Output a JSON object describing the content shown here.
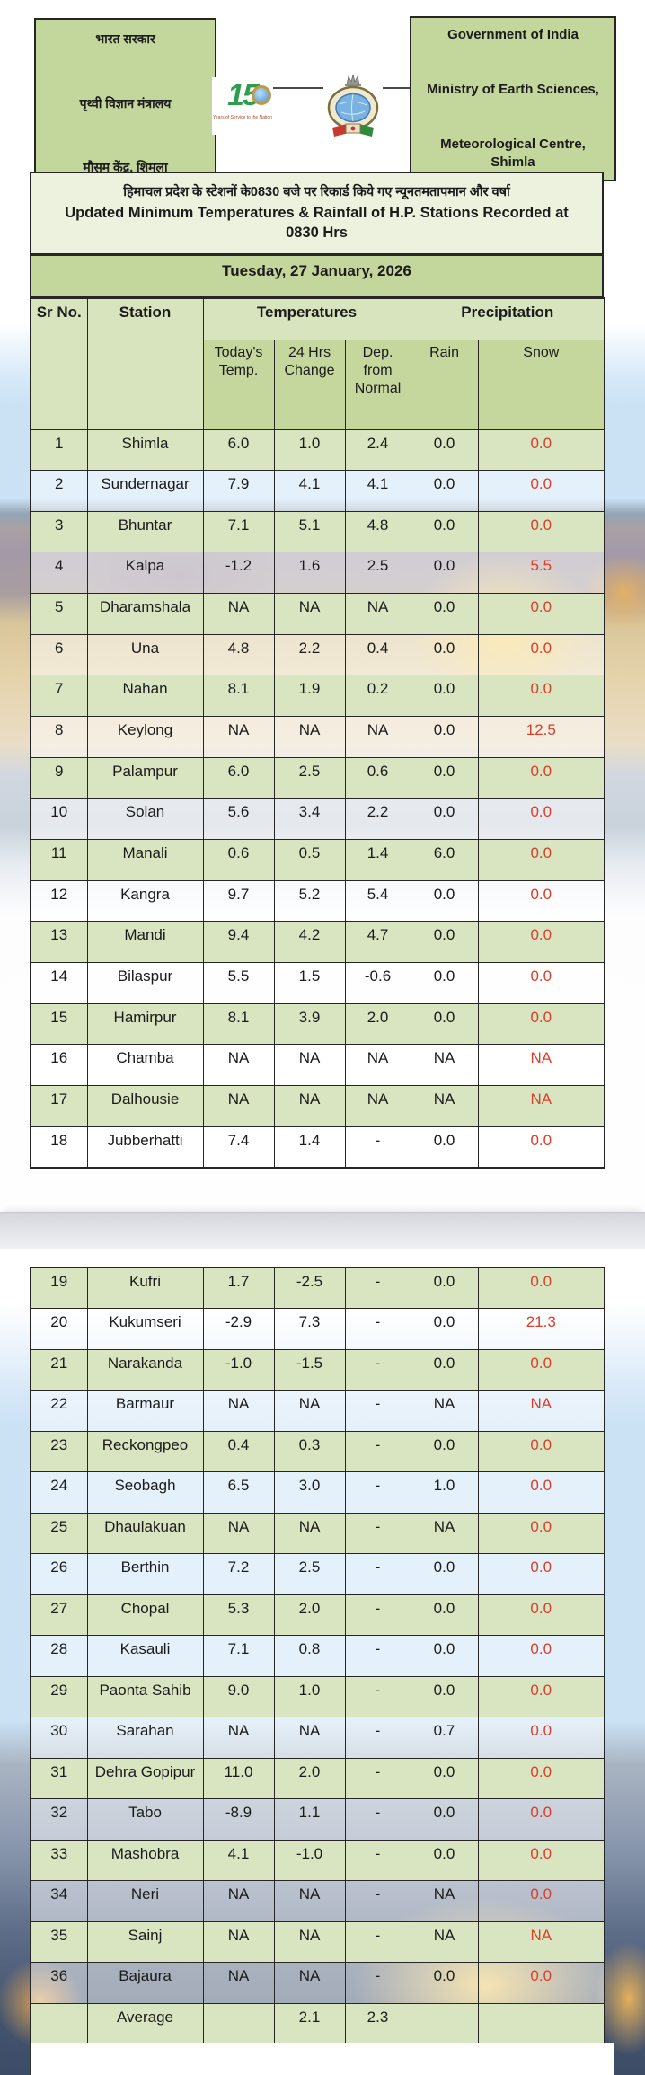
{
  "header": {
    "left_box": {
      "lines": [
        "भारत सरकार",
        "पृथ्वी विज्ञान मंत्रालय",
        "मौसम केंद्र, शिमला"
      ]
    },
    "right_box": {
      "lines": [
        "Government of India",
        "Ministry of Earth Sciences,",
        "Meteorological Centre, Shimla"
      ]
    },
    "logo_150": {
      "text": "15",
      "caption": "Years of Service to the Nation"
    }
  },
  "title": {
    "hindi": "हिमाचल प्रदेश के स्टेशनों के0830 बजे पर रिकार्ड किये गए न्यूनतमतापमान और वर्षा",
    "english": "Updated Minimum Temperatures & Rainfall of H.P. Stations Recorded at 0830 Hrs"
  },
  "date_line": "Tuesday, 27 January, 2026",
  "table": {
    "groups": {
      "temperatures": "Temperatures",
      "precipitation": "Precipitation"
    },
    "columns": [
      "Sr No.",
      "Station",
      "Today's Temp.",
      "24 Hrs Change",
      "Dep. from Normal",
      "Rain",
      "Snow"
    ],
    "rows": [
      {
        "sr": "1",
        "station": "Shimla",
        "today": "6.0",
        "change": "1.0",
        "dep": "2.4",
        "rain": "0.0",
        "snow": "0.0"
      },
      {
        "sr": "2",
        "station": "Sundernagar",
        "today": "7.9",
        "change": "4.1",
        "dep": "4.1",
        "rain": "0.0",
        "snow": "0.0"
      },
      {
        "sr": "3",
        "station": "Bhuntar",
        "today": "7.1",
        "change": "5.1",
        "dep": "4.8",
        "rain": "0.0",
        "snow": "0.0"
      },
      {
        "sr": "4",
        "station": "Kalpa",
        "today": "-1.2",
        "change": "1.6",
        "dep": "2.5",
        "rain": "0.0",
        "snow": "5.5"
      },
      {
        "sr": "5",
        "station": "Dharamshala",
        "today": "NA",
        "change": "NA",
        "dep": "NA",
        "rain": "0.0",
        "snow": "0.0"
      },
      {
        "sr": "6",
        "station": "Una",
        "today": "4.8",
        "change": "2.2",
        "dep": "0.4",
        "rain": "0.0",
        "snow": "0.0"
      },
      {
        "sr": "7",
        "station": "Nahan",
        "today": "8.1",
        "change": "1.9",
        "dep": "0.2",
        "rain": "0.0",
        "snow": "0.0"
      },
      {
        "sr": "8",
        "station": "Keylong",
        "today": "NA",
        "change": "NA",
        "dep": "NA",
        "rain": "0.0",
        "snow": "12.5"
      },
      {
        "sr": "9",
        "station": "Palampur",
        "today": "6.0",
        "change": "2.5",
        "dep": "0.6",
        "rain": "0.0",
        "snow": "0.0"
      },
      {
        "sr": "10",
        "station": "Solan",
        "today": "5.6",
        "change": "3.4",
        "dep": "2.2",
        "rain": "0.0",
        "snow": "0.0"
      },
      {
        "sr": "11",
        "station": "Manali",
        "today": "0.6",
        "change": "0.5",
        "dep": "1.4",
        "rain": "6.0",
        "snow": "0.0"
      },
      {
        "sr": "12",
        "station": "Kangra",
        "today": "9.7",
        "change": "5.2",
        "dep": "5.4",
        "rain": "0.0",
        "snow": "0.0"
      },
      {
        "sr": "13",
        "station": "Mandi",
        "today": "9.4",
        "change": "4.2",
        "dep": "4.7",
        "rain": "0.0",
        "snow": "0.0"
      },
      {
        "sr": "14",
        "station": "Bilaspur",
        "today": "5.5",
        "change": "1.5",
        "dep": "-0.6",
        "rain": "0.0",
        "snow": "0.0"
      },
      {
        "sr": "15",
        "station": "Hamirpur",
        "today": "8.1",
        "change": "3.9",
        "dep": "2.0",
        "rain": "0.0",
        "snow": "0.0"
      },
      {
        "sr": "16",
        "station": "Chamba",
        "today": "NA",
        "change": "NA",
        "dep": "NA",
        "rain": "NA",
        "snow": "NA"
      },
      {
        "sr": "17",
        "station": "Dalhousie",
        "today": "NA",
        "change": "NA",
        "dep": "NA",
        "rain": "NA",
        "snow": "NA"
      },
      {
        "sr": "18",
        "station": "Jubberhatti",
        "today": "7.4",
        "change": "1.4",
        "dep": "-",
        "rain": "0.0",
        "snow": "0.0"
      },
      {
        "sr": "19",
        "station": "Kufri",
        "today": "1.7",
        "change": "-2.5",
        "dep": "-",
        "rain": "0.0",
        "snow": "0.0"
      },
      {
        "sr": "20",
        "station": "Kukumseri",
        "today": "-2.9",
        "change": "7.3",
        "dep": "-",
        "rain": "0.0",
        "snow": "21.3"
      },
      {
        "sr": "21",
        "station": "Narakanda",
        "today": "-1.0",
        "change": "-1.5",
        "dep": "-",
        "rain": "0.0",
        "snow": "0.0"
      },
      {
        "sr": "22",
        "station": "Barmaur",
        "today": "NA",
        "change": "NA",
        "dep": "-",
        "rain": "NA",
        "snow": "NA"
      },
      {
        "sr": "23",
        "station": "Reckongpeo",
        "today": "0.4",
        "change": "0.3",
        "dep": "-",
        "rain": "0.0",
        "snow": "0.0"
      },
      {
        "sr": "24",
        "station": "Seobagh",
        "today": "6.5",
        "change": "3.0",
        "dep": "-",
        "rain": "1.0",
        "snow": "0.0"
      },
      {
        "sr": "25",
        "station": "Dhaulakuan",
        "today": "NA",
        "change": "NA",
        "dep": "-",
        "rain": "NA",
        "snow": "0.0"
      },
      {
        "sr": "26",
        "station": "Berthin",
        "today": "7.2",
        "change": "2.5",
        "dep": "-",
        "rain": "0.0",
        "snow": "0.0"
      },
      {
        "sr": "27",
        "station": "Chopal",
        "today": "5.3",
        "change": "2.0",
        "dep": "-",
        "rain": "0.0",
        "snow": "0.0"
      },
      {
        "sr": "28",
        "station": "Kasauli",
        "today": "7.1",
        "change": "0.8",
        "dep": "-",
        "rain": "0.0",
        "snow": "0.0"
      },
      {
        "sr": "29",
        "station": "Paonta Sahib",
        "today": "9.0",
        "change": "1.0",
        "dep": "-",
        "rain": "0.0",
        "snow": "0.0"
      },
      {
        "sr": "30",
        "station": "Sarahan",
        "today": "NA",
        "change": "NA",
        "dep": "-",
        "rain": "0.7",
        "snow": "0.0"
      },
      {
        "sr": "31",
        "station": "Dehra Gopipur",
        "today": "11.0",
        "change": "2.0",
        "dep": "-",
        "rain": "0.0",
        "snow": "0.0"
      },
      {
        "sr": "32",
        "station": "Tabo",
        "today": "-8.9",
        "change": "1.1",
        "dep": "-",
        "rain": "0.0",
        "snow": "0.0"
      },
      {
        "sr": "33",
        "station": "Mashobra",
        "today": "4.1",
        "change": "-1.0",
        "dep": "-",
        "rain": "0.0",
        "snow": "0.0"
      },
      {
        "sr": "34",
        "station": "Neri",
        "today": "NA",
        "change": "NA",
        "dep": "-",
        "rain": "NA",
        "snow": "0.0"
      },
      {
        "sr": "35",
        "station": "Sainj",
        "today": "NA",
        "change": "NA",
        "dep": "-",
        "rain": "NA",
        "snow": "NA"
      },
      {
        "sr": "36",
        "station": "Bajaura",
        "today": "NA",
        "change": "NA",
        "dep": "-",
        "rain": "0.0",
        "snow": "0.0"
      }
    ],
    "average_row": {
      "label": "Average",
      "change": "2.1",
      "dep": "2.3"
    }
  },
  "colors": {
    "box_green": "#c3d69b",
    "header_light_green": "#d8e4bd",
    "subheader_green": "#c6d79e",
    "row_green": "#d9e5c1",
    "title_band": "#edf2de",
    "snow_red": "#d8402b",
    "border_dark": "#262626",
    "logo_green": "#2e9b4e",
    "logo_gold": "#c49a3c",
    "globe_blue": "#78b3e4"
  }
}
